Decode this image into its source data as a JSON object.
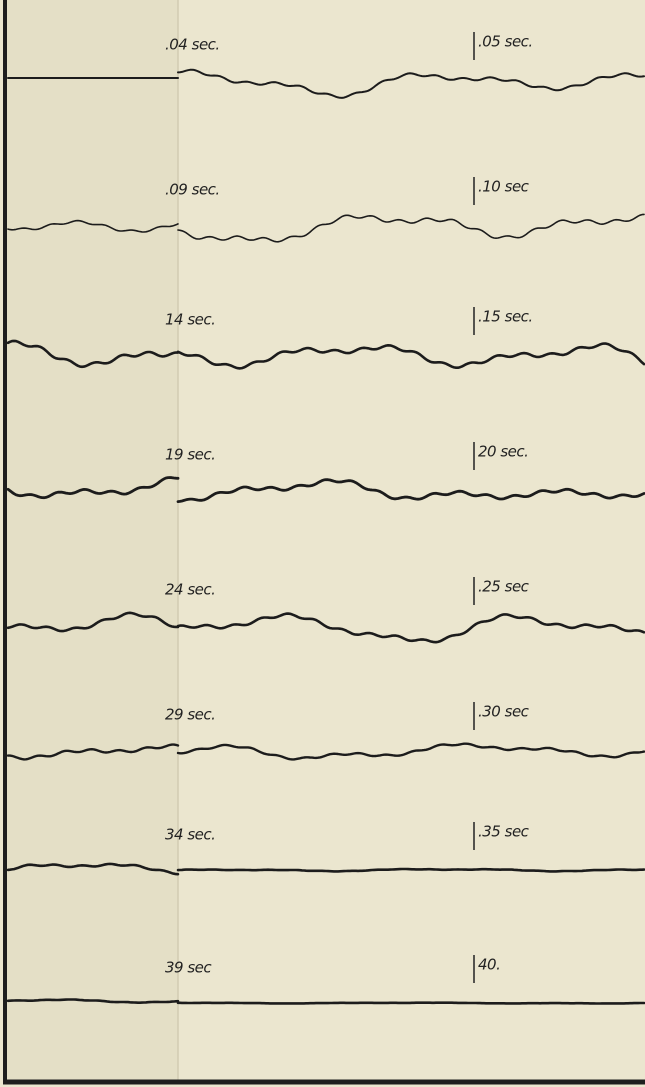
{
  "rows": [
    {
      "left_label": ".04 sec.",
      "right_label": ".05 sec."
    },
    {
      "left_label": ".09 sec.",
      "right_label": ".10 sec"
    },
    {
      "left_label": "14 sec.",
      "right_label": ".15 sec."
    },
    {
      "left_label": "19 sec.",
      "right_label": "20 sec."
    },
    {
      "left_label": "24 sec.",
      "right_label": ".25 sec"
    },
    {
      "left_label": "29 sec.",
      "right_label": ".30 sec"
    },
    {
      "left_label": "34 sec.",
      "right_label": ".35 sec"
    },
    {
      "left_label": "39 sec",
      "right_label": "40."
    }
  ]
}
